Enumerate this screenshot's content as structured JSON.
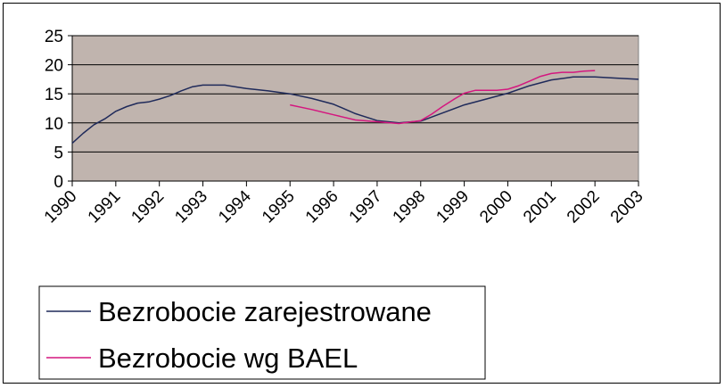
{
  "chart_data": {
    "type": "line",
    "title": "",
    "xlabel": "",
    "ylabel": "",
    "xlim": [
      1990,
      2003
    ],
    "ylim": [
      0,
      25
    ],
    "y_ticks": [
      "0",
      "5",
      "10",
      "15",
      "20",
      "25"
    ],
    "x_ticks": [
      "1990",
      "1991",
      "1992",
      "1993",
      "1994",
      "1995",
      "1996",
      "1997",
      "1998",
      "1999",
      "2000",
      "2001",
      "2002",
      "2003"
    ],
    "grid": "horizontal",
    "legend_position": "bottom-left",
    "plot_background": "#c0b4ae",
    "series": [
      {
        "name": "Bezrobocie zarejestrowane",
        "color": "#1f2a5a",
        "x": [
          1990,
          1990.25,
          1990.5,
          1990.75,
          1991,
          1991.25,
          1991.5,
          1991.75,
          1992,
          1992.25,
          1992.5,
          1992.75,
          1993,
          1993.25,
          1993.5,
          1993.75,
          1994,
          1994.5,
          1995,
          1995.5,
          1996,
          1996.5,
          1997,
          1997.5,
          1998,
          1998.5,
          1999,
          1999.5,
          2000,
          2000.5,
          2001,
          2001.5,
          2002,
          2002.5,
          2003
        ],
        "y": [
          6.5,
          8.2,
          9.7,
          10.7,
          12.0,
          12.8,
          13.4,
          13.6,
          14.1,
          14.7,
          15.5,
          16.2,
          16.5,
          16.5,
          16.5,
          16.2,
          15.9,
          15.5,
          15.0,
          14.2,
          13.2,
          11.6,
          10.4,
          10.0,
          10.3,
          11.7,
          13.1,
          14.1,
          15.1,
          16.4,
          17.4,
          17.9,
          17.9,
          17.7,
          17.5
        ]
      },
      {
        "name": "Bezrobocie wg BAEL",
        "color": "#d4177f",
        "x": [
          1995,
          1995.5,
          1996,
          1996.5,
          1997,
          1997.5,
          1998,
          1998.25,
          1998.5,
          1998.75,
          1999,
          1999.25,
          1999.5,
          1999.75,
          2000,
          2000.25,
          2000.5,
          2000.75,
          2001,
          2001.25,
          2001.5,
          2001.75,
          2002
        ],
        "y": [
          13.1,
          12.3,
          11.4,
          10.5,
          10.2,
          9.9,
          10.4,
          11.5,
          12.8,
          14.0,
          15.1,
          15.6,
          15.6,
          15.6,
          15.8,
          16.4,
          17.2,
          18.0,
          18.5,
          18.7,
          18.7,
          18.9,
          19.0
        ]
      }
    ]
  }
}
